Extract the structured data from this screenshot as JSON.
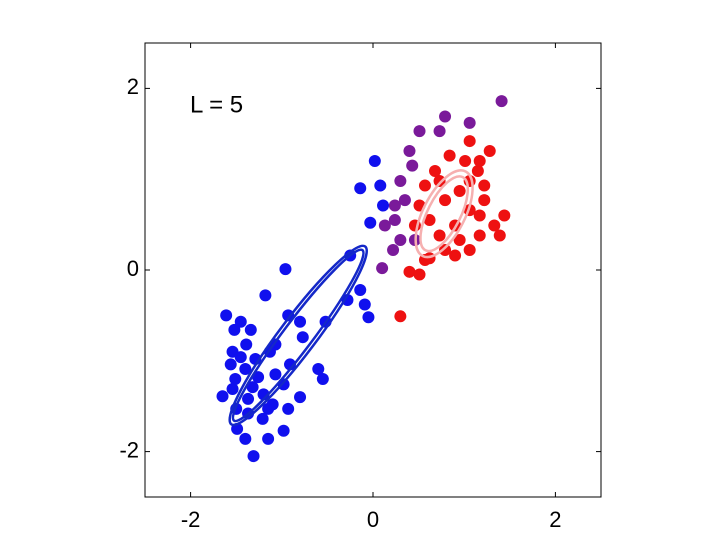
{
  "chart_data": {
    "type": "scatter",
    "annotation": "L = 5",
    "xlim": [
      -2.5,
      2.5
    ],
    "ylim": [
      -2.5,
      2.5
    ],
    "xticks": [
      -2,
      0,
      2
    ],
    "yticks": [
      -2,
      0,
      2
    ],
    "grid": false,
    "series": [
      {
        "color": "#1010ee",
        "x": [
          -0.96,
          -1.18,
          -1.61,
          -1.45,
          -1.52,
          -1.34,
          -0.8,
          -0.52,
          -0.77,
          -0.93,
          -1.07,
          -1.39,
          -1.54,
          -1.56,
          -1.4,
          -1.26,
          -1.07,
          -0.91,
          -0.6,
          -0.55,
          -1.2,
          -1.37,
          -1.65,
          -1.5,
          -1.37,
          -1.15,
          -0.93,
          -0.8,
          -1.49,
          -1.4,
          -1.15,
          -0.98,
          -1.31,
          -1.1,
          -0.98,
          -1.32,
          -1.54,
          -1.29,
          -1.13,
          -1.45,
          -1.21,
          -1.51,
          -0.25,
          0.02,
          -0.14,
          0.08,
          0.11,
          -0.03,
          -0.28,
          -0.09,
          -0.05,
          -0.14
        ],
        "y": [
          0.01,
          -0.28,
          -0.5,
          -0.57,
          -0.66,
          -0.66,
          -0.57,
          -0.57,
          -0.74,
          -0.5,
          -0.82,
          -0.82,
          -0.9,
          -1.04,
          -1.09,
          -1.18,
          -1.15,
          -1.04,
          -1.09,
          -1.2,
          -1.37,
          -1.42,
          -1.39,
          -1.53,
          -1.58,
          -1.53,
          -1.53,
          -1.4,
          -1.75,
          -1.86,
          -1.86,
          -1.77,
          -2.05,
          -1.48,
          -1.26,
          -1.29,
          -1.31,
          -0.98,
          -0.9,
          -0.96,
          -1.64,
          -1.2,
          0.16,
          1.2,
          0.9,
          0.93,
          0.71,
          0.52,
          -0.33,
          -0.38,
          -0.52,
          -0.22
        ]
      },
      {
        "color": "#7a1a9a",
        "x": [
          0.3,
          0.35,
          0.4,
          0.51,
          0.24,
          0.3,
          0.1,
          0.22,
          0.46,
          0.43,
          0.73,
          0.79,
          1.06,
          1.41,
          0.13,
          0.24
        ],
        "y": [
          0.98,
          0.77,
          1.31,
          1.53,
          0.55,
          0.33,
          0.02,
          0.22,
          0.33,
          1.15,
          1.53,
          1.69,
          1.62,
          1.86,
          0.49,
          0.71
        ]
      },
      {
        "color": "#ee1111",
        "x": [
          0.3,
          0.4,
          0.51,
          0.62,
          0.79,
          0.9,
          1.06,
          1.17,
          1.39,
          1.33,
          1.22,
          1.22,
          1.15,
          1.01,
          1.06,
          1.28,
          0.84,
          0.68,
          0.57,
          0.51,
          0.62,
          0.73,
          0.9,
          1.06,
          0.95,
          0.79,
          0.73,
          0.46,
          0.57,
          1.06,
          1.17,
          1.44,
          0.95,
          1.17
        ],
        "y": [
          -0.51,
          -0.02,
          -0.05,
          0.13,
          0.22,
          0.16,
          0.22,
          0.38,
          0.38,
          0.49,
          0.77,
          0.93,
          1.09,
          1.2,
          1.42,
          1.31,
          1.26,
          1.09,
          0.93,
          0.71,
          0.55,
          0.38,
          0.49,
          0.66,
          0.87,
          0.77,
          0.98,
          0.49,
          0.11,
          0.98,
          0.6,
          0.6,
          0.33,
          1.2
        ]
      }
    ],
    "ellipses": [
      {
        "cx": -0.82,
        "cy": -0.72,
        "rx": 1.22,
        "ry": 0.2,
        "angle": 53,
        "color": "#1428c8"
      },
      {
        "cx": -0.82,
        "cy": -0.72,
        "rx": 1.17,
        "ry": 0.16,
        "angle": 53,
        "color": "#1428c8"
      },
      {
        "cx": 0.78,
        "cy": 0.62,
        "rx": 0.52,
        "ry": 0.23,
        "angle": 63,
        "color": "#f6b0b0"
      },
      {
        "cx": 0.78,
        "cy": 0.62,
        "rx": 0.45,
        "ry": 0.18,
        "angle": 63,
        "color": "#f6b0b0"
      }
    ]
  }
}
